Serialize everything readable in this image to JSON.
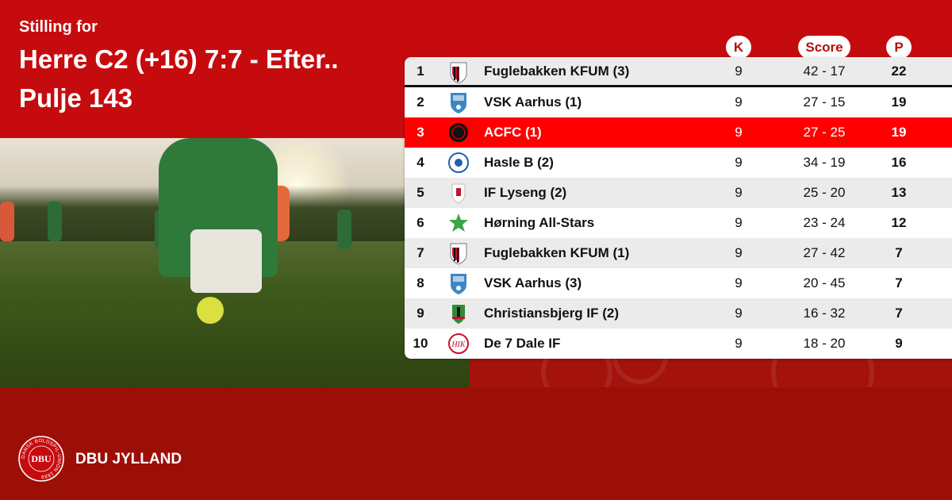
{
  "header": {
    "subtitle": "Stilling for",
    "title_line1": "Herre C2 (+16) 7:7 - Efter..",
    "title_line2": "Pulje 143"
  },
  "columns": {
    "k": "K",
    "score": "Score",
    "p": "P"
  },
  "colors": {
    "header_red": "#c60b0e",
    "highlight_red": "#fe0000",
    "footer_red": "#9c0f07"
  },
  "rows": [
    {
      "rank": "1",
      "team": "Fuglebakken KFUM (3)",
      "k": "9",
      "score": "42 - 17",
      "p": "22",
      "logo": "fuglebakken-shield"
    },
    {
      "rank": "2",
      "team": "VSK Aarhus  (1)",
      "k": "9",
      "score": "27 - 15",
      "p": "19",
      "logo": "vsk-shield"
    },
    {
      "rank": "3",
      "team": "ACFC (1)",
      "k": "9",
      "score": "27 - 25",
      "p": "19",
      "logo": "acfc-round",
      "highlighted": true
    },
    {
      "rank": "4",
      "team": "Hasle B (2)",
      "k": "9",
      "score": "34 - 19",
      "p": "16",
      "logo": "hasle-ball"
    },
    {
      "rank": "5",
      "team": "IF Lyseng (2)",
      "k": "9",
      "score": "25 - 20",
      "p": "13",
      "logo": "lyseng-shield"
    },
    {
      "rank": "6",
      "team": "Hørning All-Stars",
      "k": "9",
      "score": "23 - 24",
      "p": "12",
      "logo": "star"
    },
    {
      "rank": "7",
      "team": "Fuglebakken KFUM (1)",
      "k": "9",
      "score": "27 - 42",
      "p": "7",
      "logo": "fuglebakken-shield"
    },
    {
      "rank": "8",
      "team": "VSK Aarhus (3)",
      "k": "9",
      "score": "20 - 45",
      "p": "7",
      "logo": "vsk-shield"
    },
    {
      "rank": "9",
      "team": "Christiansbjerg IF (2)",
      "k": "9",
      "score": "16 - 32",
      "p": "7",
      "logo": "christiansbjerg-shield"
    },
    {
      "rank": "10",
      "team": "De 7 Dale IF",
      "k": "9",
      "score": "18 - 20",
      "p": "9",
      "logo": "hik-round"
    }
  ],
  "footer": {
    "brand": "DBU JYLLAND",
    "crest_text": "DBU",
    "crest_ring": "DANSK BOLDSPIL-UNION 1889"
  }
}
